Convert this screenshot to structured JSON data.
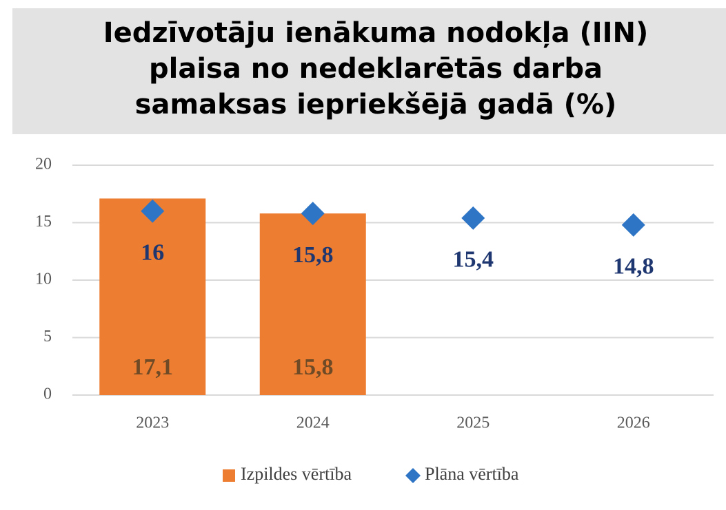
{
  "chart_data": {
    "type": "bar",
    "title": [
      "Iedzīvotāju ienākuma nodokļa (IIN)",
      "plaisa no nedeklarētās darba",
      "samaksas iepriekšējā gadā (%)"
    ],
    "categories": [
      "2023",
      "2024",
      "2025",
      "2026"
    ],
    "series": [
      {
        "name": "Izpildes vērtība",
        "type": "bar",
        "color": "#ed7d31",
        "values": [
          17.1,
          15.8,
          null,
          null
        ],
        "value_labels": [
          "17,1",
          "15,8",
          null,
          null
        ]
      },
      {
        "name": "Plāna vērtība",
        "type": "scatter",
        "color": "#2e75c6",
        "values": [
          16,
          15.8,
          15.4,
          14.8
        ],
        "value_labels": [
          "16",
          "15,8",
          "15,4",
          "14,8"
        ]
      }
    ],
    "ylim": [
      0,
      20
    ],
    "yticks": [
      0,
      5,
      10,
      15,
      20
    ],
    "grid": true,
    "legend": "bottom"
  }
}
